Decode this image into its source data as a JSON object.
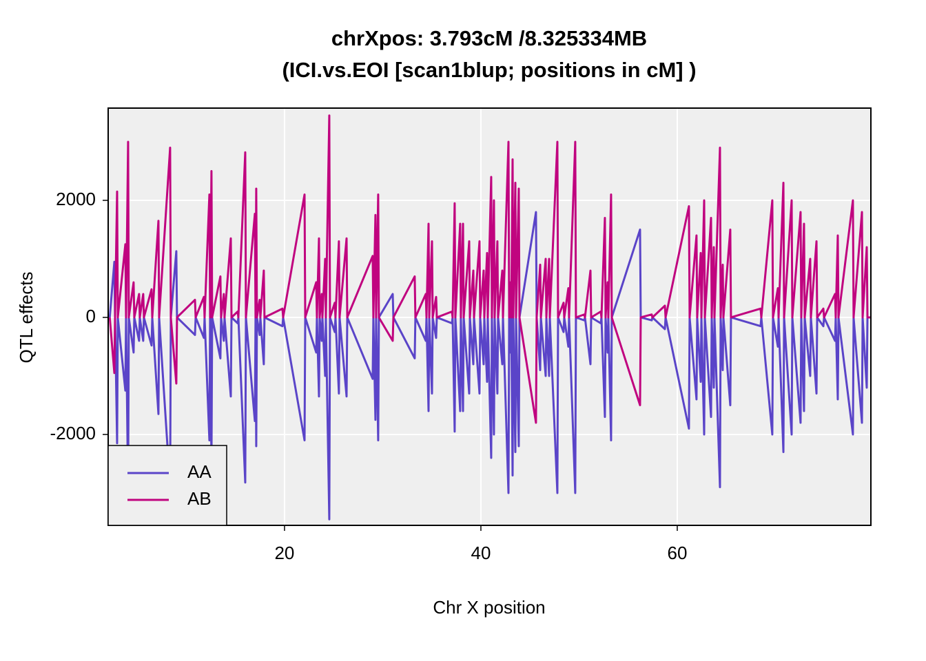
{
  "chart_data": {
    "type": "line",
    "title": "chrXpos: 3.793cM /8.325334MB",
    "subtitle": "(ICI.vs.EOI [scan1blup; positions in cM] )",
    "x_label": "Chr X position",
    "y_label": "QTL effects",
    "xlim": [
      2.04,
      79.72
    ],
    "xticks": [
      20,
      40,
      60
    ],
    "ylim": [
      -3553,
      3576
    ],
    "yticks": [
      -2000,
      0,
      2000
    ],
    "grid": true,
    "legend": "bottom-left",
    "x": [
      2.2,
      2.67,
      2.74,
      2.95,
      3.02,
      3.79,
      3.86,
      4.07,
      4.14,
      4.63,
      4.7,
      5.19,
      5.26,
      5.61,
      5.68,
      6.46,
      6.53,
      7.16,
      7.23,
      8.35,
      8.42,
      8.98,
      9.05,
      10.88,
      10.95,
      11.79,
      11.86,
      12.35,
      12.42,
      12.56,
      12.63,
      13.47,
      13.54,
      13.82,
      13.89,
      14.53,
      14.6,
      15.23,
      15.3,
      16,
      16.07,
      16.98,
      17.05,
      17.12,
      17.19,
      17.47,
      17.54,
      17.89,
      17.96,
      19.79,
      19.86,
      22.04,
      22.11,
      23.23,
      23.3,
      23.51,
      23.58,
      23.79,
      23.86,
      24.14,
      24.21,
      24.56,
      24.63,
      25.12,
      25.19,
      25.54,
      25.61,
      26.32,
      26.39,
      28.98,
      29.05,
      29.26,
      29.33,
      29.54,
      29.61,
      31.02,
      31.09,
      33.26,
      33.33,
      34.39,
      34.46,
      34.67,
      34.74,
      35.02,
      35.09,
      35.44,
      35.51,
      37.05,
      37.12,
      37.33,
      37.4,
      37.89,
      37.96,
      38.18,
      38.25,
      38.81,
      38.88,
      39.23,
      39.3,
      39.86,
      39.93,
      40.28,
      40.35,
      40.63,
      40.7,
      41.05,
      41.12,
      41.33,
      41.4,
      41.68,
      41.75,
      42.18,
      42.25,
      42.81,
      42.88,
      43.02,
      43.09,
      43.23,
      43.3,
      43.51,
      43.58,
      43.86,
      43.93,
      45.61,
      45.68,
      46.04,
      46.11,
      46.6,
      46.67,
      46.95,
      47.02,
      47.79,
      47.86,
      48.42,
      48.49,
      48.91,
      48.98,
      49.61,
      49.68,
      50.53,
      50.6,
      51.16,
      51.23,
      52.21,
      52.28,
      52.63,
      52.7,
      52.91,
      52.98,
      53.26,
      53.33,
      56.21,
      56.28,
      57.4,
      57.47,
      58.74,
      58.81,
      61.19,
      61.26,
      61.96,
      62.03,
      62.39,
      62.46,
      62.74,
      62.81,
      63.44,
      63.51,
      63.72,
      63.79,
      64.35,
      64.42,
      64.63,
      64.7,
      65.4,
      65.47,
      68.49,
      68.56,
      69.68,
      69.75,
      70.25,
      70.32,
      70.81,
      70.88,
      71.65,
      71.72,
      72.56,
      72.63,
      72.91,
      72.98,
      73.54,
      73.61,
      74.18,
      74.25,
      74.88,
      74.95,
      76.07,
      76.14,
      76.35,
      76.42,
      77.89,
      77.96,
      78.81,
      78.88,
      79.3,
      79.37,
      79.7
    ],
    "series": [
      {
        "name": "AA",
        "color": "#5a44c8",
        "values": [
          0,
          950,
          0,
          -2150,
          0,
          -1250,
          0,
          -3000,
          0,
          -600,
          0,
          -400,
          0,
          -400,
          0,
          -480,
          0,
          -1650,
          0,
          -2900,
          0,
          1130,
          0,
          -300,
          0,
          -350,
          0,
          -2100,
          0,
          -2500,
          0,
          -700,
          0,
          -400,
          0,
          -1350,
          0,
          -100,
          0,
          -2820,
          0,
          -1770,
          0,
          -2200,
          0,
          -300,
          0,
          -800,
          0,
          -150,
          0,
          -2100,
          0,
          -600,
          0,
          -1350,
          0,
          -400,
          0,
          -1000,
          0,
          -3450,
          0,
          -250,
          0,
          -1300,
          0,
          -1350,
          0,
          -1050,
          0,
          -1750,
          0,
          -2100,
          0,
          400,
          0,
          -700,
          0,
          -400,
          0,
          -1600,
          0,
          -1300,
          0,
          -350,
          0,
          -100,
          0,
          -1950,
          0,
          -1600,
          0,
          -1600,
          0,
          -1300,
          0,
          -800,
          0,
          -1300,
          0,
          -800,
          0,
          -1100,
          0,
          -2400,
          0,
          -2000,
          0,
          -1300,
          0,
          -800,
          0,
          -3000,
          0,
          -600,
          0,
          -2700,
          0,
          -2300,
          0,
          -2200,
          0,
          1800,
          0,
          -900,
          0,
          -1000,
          0,
          -1000,
          0,
          -3000,
          0,
          -250,
          0,
          -500,
          0,
          -3000,
          0,
          -50,
          0,
          -800,
          0,
          -100,
          0,
          -1700,
          0,
          -600,
          0,
          -2100,
          0,
          1500,
          0,
          -50,
          0,
          -200,
          0,
          -1900,
          0,
          -1400,
          0,
          -1100,
          0,
          -2000,
          0,
          -1700,
          0,
          -1200,
          0,
          -2900,
          0,
          -900,
          0,
          -1500,
          0,
          -150,
          0,
          -2000,
          0,
          -500,
          0,
          -2300,
          0,
          -2000,
          0,
          -1800,
          0,
          -1600,
          0,
          -1000,
          0,
          -1300,
          0,
          -150,
          0,
          -400,
          0,
          -1400,
          0,
          -2000,
          0,
          -1800,
          0,
          -1200,
          0,
          0
        ]
      },
      {
        "name": "AB",
        "color": "#c0047f",
        "values": [
          0,
          -950,
          0,
          2150,
          0,
          1250,
          0,
          3000,
          0,
          600,
          0,
          400,
          0,
          400,
          0,
          480,
          0,
          1650,
          0,
          2900,
          0,
          -1130,
          0,
          300,
          0,
          350,
          0,
          2100,
          0,
          2500,
          0,
          700,
          0,
          400,
          0,
          1350,
          0,
          100,
          0,
          2820,
          0,
          1770,
          0,
          2200,
          0,
          300,
          0,
          800,
          0,
          150,
          0,
          2100,
          0,
          600,
          0,
          1350,
          0,
          400,
          0,
          1000,
          0,
          3450,
          0,
          250,
          0,
          1300,
          0,
          1350,
          0,
          1050,
          0,
          1750,
          0,
          2100,
          0,
          -400,
          0,
          700,
          0,
          400,
          0,
          1600,
          0,
          1300,
          0,
          350,
          0,
          100,
          0,
          1950,
          0,
          1600,
          0,
          1600,
          0,
          1300,
          0,
          800,
          0,
          1300,
          0,
          800,
          0,
          1100,
          0,
          2400,
          0,
          2000,
          0,
          1300,
          0,
          800,
          0,
          3000,
          0,
          600,
          0,
          2700,
          0,
          2300,
          0,
          2200,
          0,
          -1800,
          0,
          900,
          0,
          1000,
          0,
          1000,
          0,
          3000,
          0,
          250,
          0,
          500,
          0,
          3000,
          0,
          50,
          0,
          800,
          0,
          100,
          0,
          1700,
          0,
          600,
          0,
          2100,
          0,
          -1500,
          0,
          50,
          0,
          200,
          0,
          1900,
          0,
          1400,
          0,
          1100,
          0,
          2000,
          0,
          1700,
          0,
          1200,
          0,
          2900,
          0,
          900,
          0,
          1500,
          0,
          150,
          0,
          2000,
          0,
          500,
          0,
          2300,
          0,
          2000,
          0,
          1800,
          0,
          1600,
          0,
          1000,
          0,
          1300,
          0,
          150,
          0,
          400,
          0,
          1400,
          0,
          2000,
          0,
          1800,
          0,
          1200,
          0,
          0
        ]
      }
    ]
  }
}
